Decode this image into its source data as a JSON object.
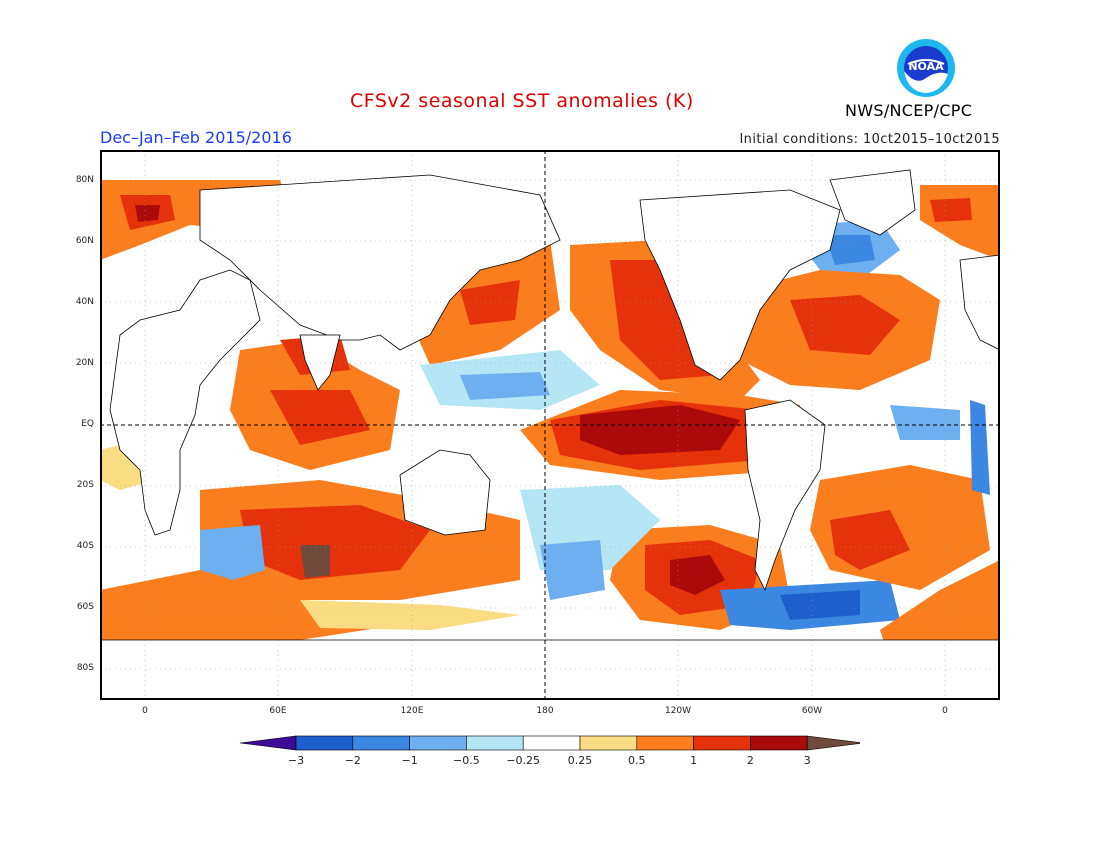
{
  "title": "CFSv2 seasonal SST anomalies (K)",
  "period": "Dec–Jan–Feb 2015/2016",
  "initial_conditions": "Initial conditions: 10ct2015–10ct2015",
  "agency": "NWS/NCEP/CPC",
  "logo_text": "NOAA",
  "lat_labels": [
    "80N",
    "60N",
    "40N",
    "20N",
    "EQ",
    "20S",
    "40S",
    "60S",
    "80S"
  ],
  "lon_labels": [
    "0",
    "60E",
    "120E",
    "180",
    "120W",
    "60W",
    "0"
  ],
  "colorbar": {
    "labels": [
      "−3",
      "−2",
      "−1",
      "−0.5",
      "−0.25",
      "0.25",
      "0.5",
      "1",
      "2",
      "3"
    ],
    "colors": [
      "#3c0a96",
      "#1e5fcd",
      "#3c87e1",
      "#6eaff0",
      "#b4e6f5",
      "#ffffff",
      "#fadc82",
      "#fa7d1e",
      "#e6320a",
      "#aa0a0a",
      "#6e4b3c"
    ]
  }
}
